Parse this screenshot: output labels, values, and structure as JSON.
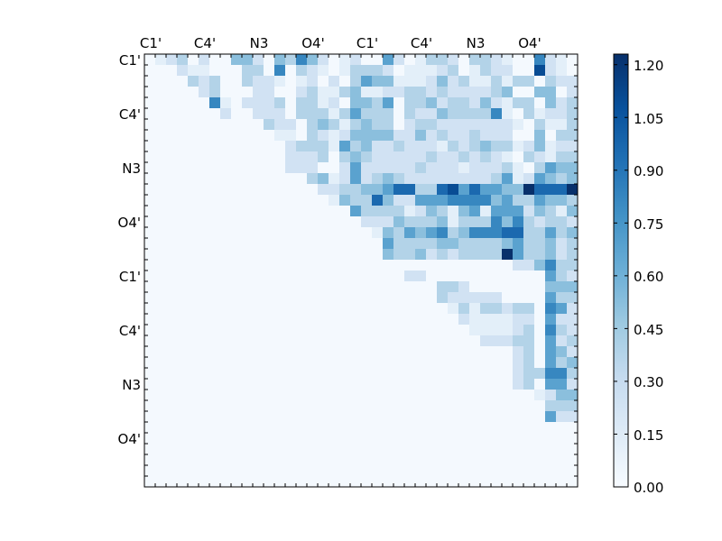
{
  "chart_data": {
    "type": "heatmap",
    "title": "",
    "x_tick_labels": [
      "C1'",
      "C4'",
      "N3",
      "O4'",
      "C1'",
      "C4'",
      "N3",
      "O4'"
    ],
    "y_tick_labels": [
      "C1'",
      "C4'",
      "N3",
      "O4'",
      "C1'",
      "C4'",
      "N3",
      "O4'"
    ],
    "colorbar_tick_labels": [
      "0.00",
      "0.15",
      "0.30",
      "0.45",
      "0.60",
      "0.75",
      "0.90",
      "1.05",
      "1.20"
    ],
    "colorbar_range": [
      0,
      1.23
    ],
    "colormap": "Blues",
    "grid_size": [
      40,
      40
    ],
    "matrix_rows": [
      "0123020044204364201200520133203321006210",
      "0002110003306032101333201112301322008210",
      "0000323003221012020354411124231131330322",
      "0000023000220023113411223323222234004402",
      "0000006102223033120443503342332421330423",
      "0000000200222033313533303224333361031223",
      "0000000000032203431343302332222222103113",
      "0000000000001103212444422423223222004033",
      "0000000000000233315342232221323433124122",
      "0000000000000222303432222232232321032133",
      "0000000000000222002522222322212223103544",
      "0000000000000003412523432222222235125434",
      "0000000000000000223344577337857554497779",
      "0000000000000000014337422555666645335443",
      "0000000000000000000533331243145155524314",
      "0000000000000000000022243334133364632332",
      "0000000000000000000001435456346667733534",
      "0000000000000000000000533334433334533423",
      "0000000000000000000000433423233339533423",
      "0000000000000000000000000000000000224633",
      "0000000000000000000000002200000000000532",
      "0000000000000000000000000003320000000444",
      "0000000000000000000000000003222220000533",
      "0000000000000000000000000000131332330652",
      "0000000000000000000000000000021111220522",
      "0000000000000000000000000000001111230632",
      "0000000000000000000000000000000222330523",
      "0000000000000000000000000000000000230542",
      "0000000000000000000000000000000000230534",
      "0000000000000000000000000000000000233663",
      "0000000000000000000000000000000000230552",
      "0000000000000000000000000000000000001244",
      "0000000000000000000000000000000000000333",
      "0000000000000000000000000000000000000522",
      "0000000000000000000000000000000000000000",
      "0000000000000000000000000000000000000000",
      "0000000000000000000000000000000000000000",
      "0000000000000000000000000000000000000000",
      "0000000000000000000000000000000000000000",
      "0000000000000000000000000000000000000000"
    ],
    "value_levels": [
      0.02,
      0.12,
      0.24,
      0.38,
      0.52,
      0.68,
      0.82,
      0.96,
      1.1,
      1.23
    ],
    "colors": {
      "low": "#f7fbff",
      "mid": "#6baed6",
      "high": "#08306b"
    }
  }
}
